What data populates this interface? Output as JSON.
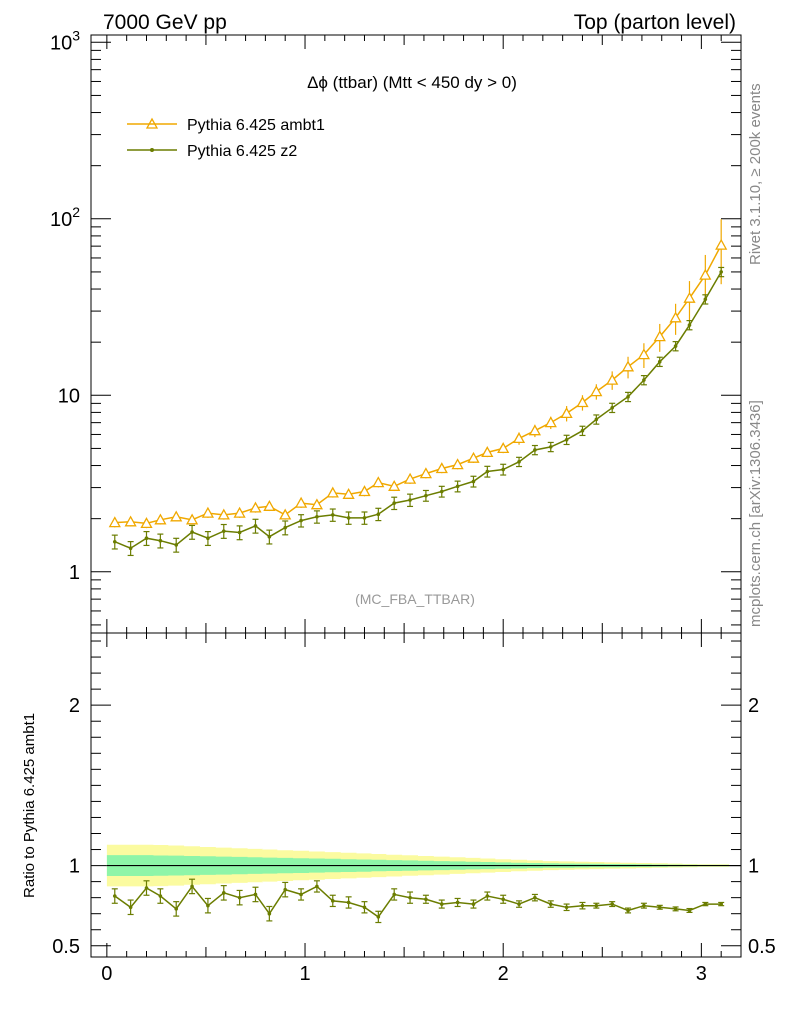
{
  "header": {
    "left": "7000 GeV pp",
    "right": "Top (parton level)"
  },
  "side": {
    "rivet": "Rivet 3.1.10, ≥ 200k events",
    "mcplots": "mcplots.cern.ch [arXiv:1306.3436]"
  },
  "chart_data": {
    "type": "line",
    "title": "Δϕ (ttbar) (Mtt < 450 dy > 0)",
    "analysis_tag": "(MC_FBA_TTBAR)",
    "ylabel": "",
    "ratio_ylabel": "Ratio to Pythia 6.425 ambt1",
    "xlim": [
      -0.08,
      3.2
    ],
    "ylim": [
      0.45,
      1100
    ],
    "ylog": true,
    "ratio_ylim": [
      0.43,
      2.45
    ],
    "legend_position": "top-left",
    "x_ticks": [
      "0",
      "1",
      "2",
      "3"
    ],
    "y_ticks": [
      {
        "base": "1",
        "exp": ""
      },
      {
        "base": "10",
        "exp": ""
      },
      {
        "base": "10",
        "exp": "2"
      },
      {
        "base": "10",
        "exp": "3"
      }
    ],
    "ratio_ticks": [
      "0.5",
      "1",
      "2"
    ],
    "x": [
      0.04,
      0.12,
      0.2,
      0.27,
      0.35,
      0.43,
      0.51,
      0.59,
      0.67,
      0.75,
      0.82,
      0.9,
      0.98,
      1.06,
      1.14,
      1.22,
      1.3,
      1.37,
      1.45,
      1.53,
      1.61,
      1.69,
      1.77,
      1.85,
      1.92,
      2.0,
      2.08,
      2.16,
      2.24,
      2.32,
      2.4,
      2.47,
      2.55,
      2.63,
      2.71,
      2.79,
      2.87,
      2.94,
      3.02,
      3.1
    ],
    "series": [
      {
        "name": "Pythia 6.425 ambt1",
        "color": "#f0a800",
        "marker": "open-triangle",
        "values": [
          1.9,
          1.92,
          1.88,
          1.97,
          2.05,
          1.97,
          2.15,
          2.1,
          2.15,
          2.3,
          2.35,
          2.1,
          2.45,
          2.4,
          2.8,
          2.75,
          2.85,
          3.2,
          3.05,
          3.35,
          3.6,
          3.85,
          4.05,
          4.4,
          4.75,
          5.0,
          5.7,
          6.3,
          7.0,
          7.9,
          9.1,
          10.5,
          12.2,
          14.5,
          17.0,
          21.5,
          27.5,
          35.5,
          48.0,
          71.0
        ],
        "errors": [
          0.06,
          0.06,
          0.06,
          0.06,
          0.06,
          0.06,
          0.06,
          0.06,
          0.06,
          0.06,
          0.06,
          0.06,
          0.06,
          0.06,
          0.06,
          0.06,
          0.06,
          0.06,
          0.06,
          0.06,
          0.06,
          0.06,
          0.06,
          0.06,
          0.06,
          0.06,
          0.08,
          0.08,
          0.08,
          0.1,
          0.1,
          0.1,
          0.12,
          0.14,
          0.16,
          0.18,
          0.2,
          0.25,
          0.3,
          0.4
        ]
      },
      {
        "name": "Pythia 6.425 z2",
        "color": "#6b7d00",
        "marker": "dot",
        "values": [
          1.48,
          1.36,
          1.55,
          1.5,
          1.42,
          1.68,
          1.55,
          1.7,
          1.67,
          1.82,
          1.58,
          1.78,
          1.95,
          2.05,
          2.1,
          2.02,
          2.02,
          2.12,
          2.45,
          2.55,
          2.7,
          2.85,
          3.05,
          3.25,
          3.7,
          3.8,
          4.2,
          4.9,
          5.1,
          5.6,
          6.3,
          7.3,
          8.5,
          9.8,
          12.2,
          15.5,
          19.0,
          25.0,
          35.0,
          50.0
        ],
        "errors": [
          0.09,
          0.09,
          0.09,
          0.09,
          0.09,
          0.09,
          0.09,
          0.09,
          0.09,
          0.09,
          0.09,
          0.09,
          0.08,
          0.08,
          0.08,
          0.08,
          0.08,
          0.08,
          0.08,
          0.08,
          0.07,
          0.07,
          0.07,
          0.07,
          0.07,
          0.07,
          0.06,
          0.06,
          0.06,
          0.06,
          0.06,
          0.06,
          0.06,
          0.06,
          0.06,
          0.06,
          0.06,
          0.06,
          0.06,
          0.06
        ]
      }
    ],
    "ratio": [
      0.81,
      0.74,
      0.86,
      0.81,
      0.73,
      0.87,
      0.75,
      0.83,
      0.8,
      0.82,
      0.7,
      0.85,
      0.82,
      0.87,
      0.78,
      0.77,
      0.74,
      0.68,
      0.82,
      0.8,
      0.79,
      0.76,
      0.77,
      0.76,
      0.81,
      0.79,
      0.76,
      0.8,
      0.76,
      0.74,
      0.75,
      0.75,
      0.76,
      0.72,
      0.75,
      0.74,
      0.73,
      0.72,
      0.76,
      0.76
    ],
    "ratio_errors": [
      0.045,
      0.045,
      0.045,
      0.045,
      0.045,
      0.045,
      0.045,
      0.045,
      0.045,
      0.045,
      0.045,
      0.045,
      0.035,
      0.035,
      0.035,
      0.035,
      0.035,
      0.035,
      0.035,
      0.035,
      0.025,
      0.025,
      0.025,
      0.025,
      0.025,
      0.025,
      0.02,
      0.02,
      0.02,
      0.02,
      0.02,
      0.015,
      0.015,
      0.015,
      0.015,
      0.012,
      0.012,
      0.012,
      0.01,
      0.01
    ],
    "ratio_band_inner": [
      0.065,
      0.065,
      0.065,
      0.063,
      0.062,
      0.06,
      0.058,
      0.056,
      0.054,
      0.052,
      0.05,
      0.048,
      0.046,
      0.044,
      0.042,
      0.04,
      0.038,
      0.036,
      0.034,
      0.032,
      0.03,
      0.028,
      0.026,
      0.024,
      0.022,
      0.02,
      0.018,
      0.016,
      0.014,
      0.013,
      0.012,
      0.011,
      0.01,
      0.009,
      0.008,
      0.007,
      0.006,
      0.005,
      0.004,
      0.004
    ],
    "ratio_band_outer": [
      0.13,
      0.13,
      0.13,
      0.128,
      0.125,
      0.12,
      0.116,
      0.112,
      0.108,
      0.104,
      0.1,
      0.096,
      0.092,
      0.088,
      0.084,
      0.08,
      0.076,
      0.072,
      0.068,
      0.064,
      0.06,
      0.056,
      0.052,
      0.048,
      0.044,
      0.04,
      0.036,
      0.032,
      0.028,
      0.026,
      0.024,
      0.022,
      0.02,
      0.018,
      0.016,
      0.014,
      0.012,
      0.01,
      0.008,
      0.008
    ],
    "colors": {
      "band_inner": "#8ef5a8",
      "band_outer": "#fbfba0"
    }
  }
}
